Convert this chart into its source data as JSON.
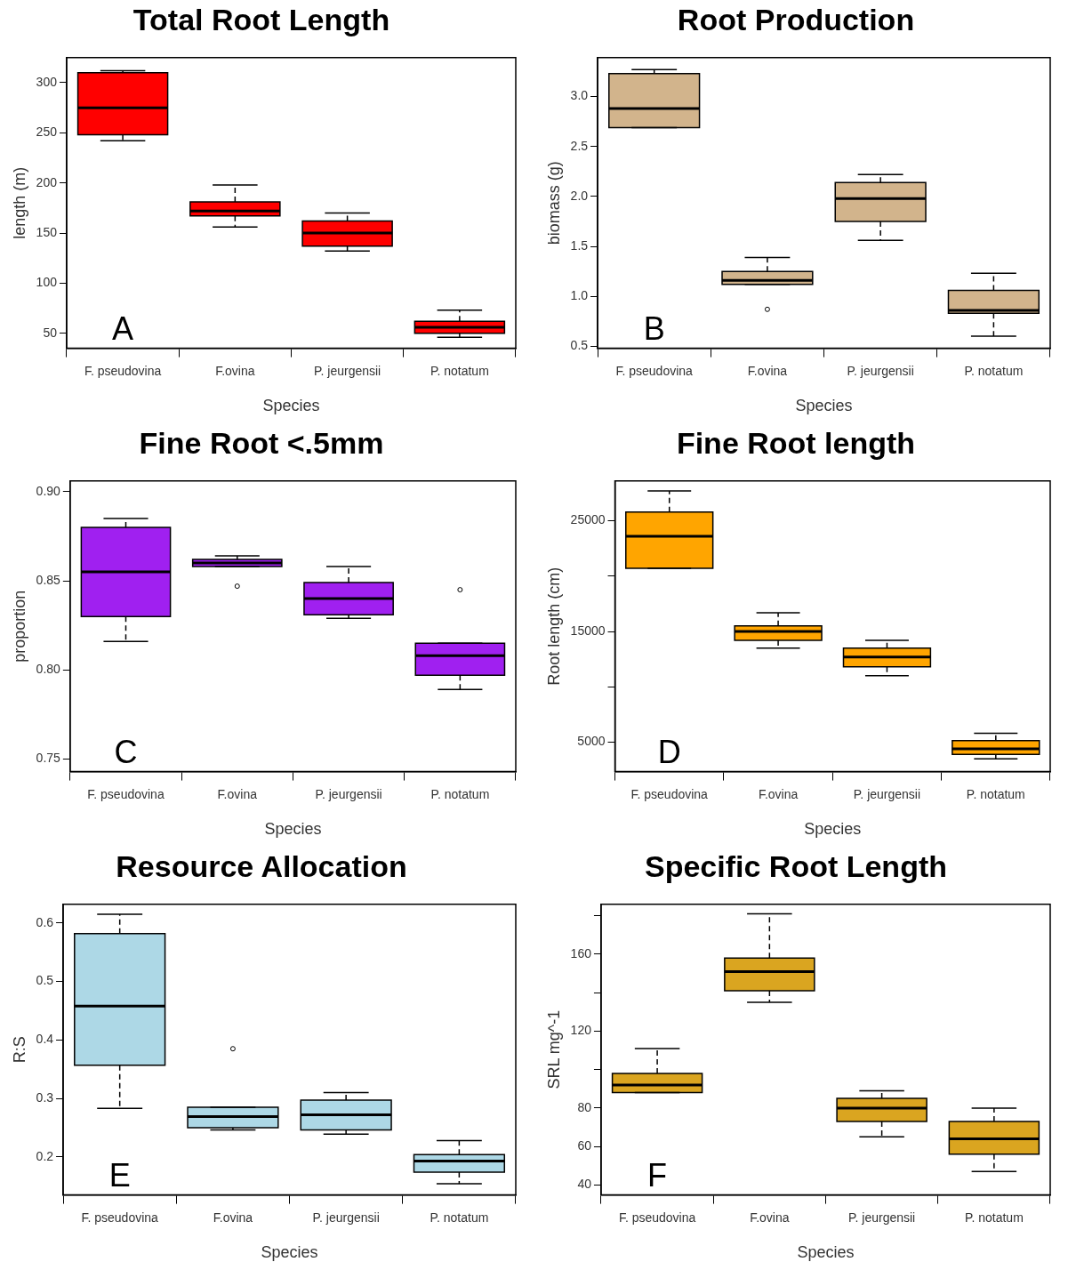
{
  "chart_data": [
    {
      "type": "box",
      "title": "Total Root Length",
      "xlabel": "Species",
      "ylabel": "length (m)",
      "categories": [
        "F. pseudovina",
        "F.ovina",
        "P. jeurgensii",
        "P. notatum"
      ],
      "color": "#ff0000",
      "grid": false,
      "ylim": [
        35,
        325
      ],
      "yticks": [
        50,
        100,
        150,
        200,
        250,
        300
      ],
      "annotations": [
        "A"
      ],
      "boxes": [
        {
          "low": 242,
          "q1": 248,
          "median": 275,
          "q3": 310,
          "high": 312
        },
        {
          "low": 156,
          "q1": 167,
          "median": 172,
          "q3": 181,
          "high": 198
        },
        {
          "low": 132,
          "q1": 137,
          "median": 150,
          "q3": 162,
          "high": 170
        },
        {
          "low": 46,
          "q1": 50,
          "median": 56,
          "q3": 62,
          "high": 73
        }
      ]
    },
    {
      "type": "box",
      "title": "Root Production",
      "xlabel": "Species",
      "ylabel": "biomass (g)",
      "categories": [
        "F. pseudovina",
        "F.ovina",
        "P. jeurgensii",
        "P. notatum"
      ],
      "color": "#d2b48c",
      "grid": false,
      "ylim": [
        0.48,
        3.39
      ],
      "yticks": [
        {
          "value": 0.5,
          "label": "0.5"
        },
        {
          "value": 1,
          "label": "1.0"
        },
        {
          "value": 1.5,
          "label": "1.5"
        },
        {
          "value": 2,
          "label": "2.0"
        },
        {
          "value": 2.5,
          "label": "2.5"
        },
        {
          "value": 3,
          "label": "3.0"
        }
      ],
      "annotations": [
        "B"
      ],
      "boxes": [
        {
          "low": 2.69,
          "q1": 2.69,
          "median": 2.88,
          "q3": 3.23,
          "high": 3.27
        },
        {
          "low": 1.12,
          "q1": 1.12,
          "median": 1.16,
          "q3": 1.25,
          "high": 1.39,
          "outliers": [
            0.87
          ]
        },
        {
          "low": 1.56,
          "q1": 1.75,
          "median": 1.98,
          "q3": 2.14,
          "high": 2.22
        },
        {
          "low": 0.6,
          "q1": 0.83,
          "median": 0.86,
          "q3": 1.06,
          "high": 1.23
        }
      ]
    },
    {
      "type": "box",
      "title": "Fine Root <.5mm",
      "xlabel": "Species",
      "ylabel": "proportion",
      "categories": [
        "F. pseudovina",
        "F.ovina",
        "P. jeurgensii",
        "P. notatum"
      ],
      "color": "#a020f0",
      "grid": false,
      "ylim": [
        0.743,
        0.906
      ],
      "yticks": [
        0.75,
        {
          "value": 0.8,
          "label": "0.80"
        },
        0.85,
        {
          "value": 0.9,
          "label": "0.90"
        }
      ],
      "annotations": [
        "C"
      ],
      "boxes": [
        {
          "low": 0.816,
          "q1": 0.83,
          "median": 0.855,
          "q3": 0.88,
          "high": 0.885
        },
        {
          "low": 0.858,
          "q1": 0.858,
          "median": 0.86,
          "q3": 0.862,
          "high": 0.864,
          "outliers": [
            0.847
          ]
        },
        {
          "low": 0.829,
          "q1": 0.831,
          "median": 0.84,
          "q3": 0.849,
          "high": 0.858
        },
        {
          "low": 0.789,
          "q1": 0.797,
          "median": 0.808,
          "q3": 0.815,
          "high": 0.815,
          "outliers": [
            0.845
          ]
        }
      ]
    },
    {
      "type": "box",
      "title": "Fine Root length",
      "xlabel": "Species",
      "ylabel": "Root length (cm)",
      "categories": [
        "F. pseudovina",
        "F.ovina",
        "P. jeurgensii",
        "P. notatum"
      ],
      "color": "#ffa500",
      "grid": false,
      "ylim": [
        2340,
        28600
      ],
      "yticks": [
        5000,
        {
          "value": 10000,
          "label": null
        },
        15000,
        {
          "value": 20000,
          "label": null
        },
        25000
      ],
      "annotations": [
        "D"
      ],
      "boxes": [
        {
          "low": 20700,
          "q1": 20700,
          "median": 23600,
          "q3": 25800,
          "high": 27700
        },
        {
          "low": 13500,
          "q1": 14200,
          "median": 15000,
          "q3": 15500,
          "high": 16700
        },
        {
          "low": 11000,
          "q1": 11800,
          "median": 12700,
          "q3": 13500,
          "high": 14200
        },
        {
          "low": 3500,
          "q1": 3900,
          "median": 4400,
          "q3": 5150,
          "high": 5800
        }
      ]
    },
    {
      "type": "box",
      "title": "Resource Allocation",
      "xlabel": "Species",
      "ylabel": "R:S",
      "categories": [
        "F. pseudovina",
        "F.ovina",
        "P. jeurgensii",
        "P. notatum"
      ],
      "color": "#add8e6",
      "grid": false,
      "ylim": [
        0.135,
        0.632
      ],
      "yticks": [
        0.2,
        0.3,
        0.4,
        0.5,
        0.6
      ],
      "annotations": [
        "E"
      ],
      "boxes": [
        {
          "low": 0.283,
          "q1": 0.357,
          "median": 0.458,
          "q3": 0.582,
          "high": 0.615
        },
        {
          "low": 0.246,
          "q1": 0.25,
          "median": 0.269,
          "q3": 0.285,
          "high": 0.285,
          "outliers": [
            0.385
          ]
        },
        {
          "low": 0.239,
          "q1": 0.246,
          "median": 0.272,
          "q3": 0.297,
          "high": 0.31
        },
        {
          "low": 0.154,
          "q1": 0.174,
          "median": 0.193,
          "q3": 0.204,
          "high": 0.228
        }
      ]
    },
    {
      "type": "box",
      "title": "Specific Root Length",
      "xlabel": "Species",
      "ylabel": "SRL mg^-1",
      "categories": [
        "F. pseudovina",
        "F.ovina",
        "P. jeurgensii",
        "P. notatum"
      ],
      "color": "#daa520",
      "grid": false,
      "ylim": [
        34.8,
        186
      ],
      "yticks": [
        40,
        60,
        80,
        {
          "value": 100,
          "label": null
        },
        120,
        {
          "value": 140,
          "label": null
        },
        160,
        {
          "value": 180,
          "label": null
        }
      ],
      "annotations": [
        "F"
      ],
      "boxes": [
        {
          "low": 88,
          "q1": 88,
          "median": 92,
          "q3": 98,
          "high": 111
        },
        {
          "low": 135,
          "q1": 141,
          "median": 151,
          "q3": 158,
          "high": 181
        },
        {
          "low": 65,
          "q1": 73,
          "median": 80,
          "q3": 85,
          "high": 89
        },
        {
          "low": 47,
          "q1": 56,
          "median": 64,
          "q3": 73,
          "high": 80
        }
      ]
    }
  ]
}
